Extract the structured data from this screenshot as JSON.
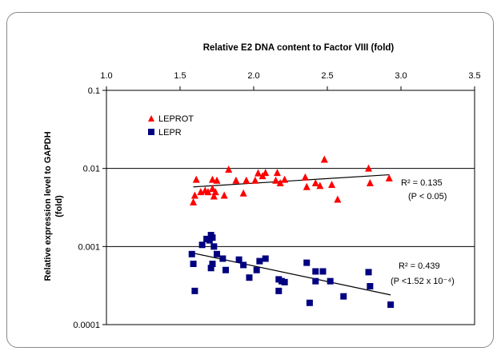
{
  "chart_data": {
    "type": "scatter",
    "title": "Relative E2 DNA content to Factor VIII (fold)",
    "xlabel": "",
    "ylabel": "Relative expression level to GAPDH (fold)",
    "ylabel_lines": [
      "Relative expression level to GAPDH",
      "(fold)"
    ],
    "x_axis_position": "top",
    "xlim": [
      1.0,
      3.5
    ],
    "x_ticks": [
      "1.0",
      "1.5",
      "2.0",
      "2.5",
      "3.0",
      "3.5"
    ],
    "y_scale": "log",
    "ylim": [
      0.0001,
      0.1
    ],
    "y_ticks": [
      "0.0001",
      "0.001",
      "0.01",
      "0.1"
    ],
    "grid": "horizontal",
    "legend_position": "top-left",
    "colors": {
      "LEPROT": "#ff0000",
      "LEPR": "#000080",
      "trend": "#000000",
      "grid": "#000000"
    },
    "series": [
      {
        "name": "LEPROT",
        "marker": "triangle",
        "color": "#ff0000",
        "points": [
          [
            1.59,
            0.0037
          ],
          [
            1.6,
            0.0045
          ],
          [
            1.61,
            0.0072
          ],
          [
            1.64,
            0.005
          ],
          [
            1.67,
            0.0052
          ],
          [
            1.69,
            0.005
          ],
          [
            1.72,
            0.0055
          ],
          [
            1.72,
            0.0072
          ],
          [
            1.73,
            0.0044
          ],
          [
            1.74,
            0.005
          ],
          [
            1.75,
            0.007
          ],
          [
            1.8,
            0.0045
          ],
          [
            1.83,
            0.0097
          ],
          [
            1.88,
            0.007
          ],
          [
            1.93,
            0.0048
          ],
          [
            1.95,
            0.007
          ],
          [
            2.01,
            0.007
          ],
          [
            2.03,
            0.0087
          ],
          [
            2.06,
            0.008
          ],
          [
            2.08,
            0.0088
          ],
          [
            2.15,
            0.007
          ],
          [
            2.16,
            0.0088
          ],
          [
            2.18,
            0.0065
          ],
          [
            2.21,
            0.0072
          ],
          [
            2.35,
            0.0077
          ],
          [
            2.36,
            0.0058
          ],
          [
            2.42,
            0.0065
          ],
          [
            2.45,
            0.006
          ],
          [
            2.48,
            0.013
          ],
          [
            2.53,
            0.0062
          ],
          [
            2.57,
            0.004
          ],
          [
            2.78,
            0.01
          ],
          [
            2.79,
            0.0065
          ],
          [
            2.92,
            0.0075
          ]
        ],
        "trendline": {
          "x": [
            1.59,
            2.92
          ],
          "y": [
            0.0058,
            0.0083
          ]
        },
        "annotation": {
          "r2": "R² = 0.135",
          "p": "(P < 0.05)"
        }
      },
      {
        "name": "LEPR",
        "marker": "square",
        "color": "#000080",
        "points": [
          [
            1.58,
            0.0008
          ],
          [
            1.59,
            0.0006
          ],
          [
            1.6,
            0.00027
          ],
          [
            1.65,
            0.00105
          ],
          [
            1.68,
            0.00125
          ],
          [
            1.7,
            0.0012
          ],
          [
            1.71,
            0.0014
          ],
          [
            1.72,
            0.0013
          ],
          [
            1.71,
            0.00053
          ],
          [
            1.72,
            0.0006
          ],
          [
            1.73,
            0.001
          ],
          [
            1.75,
            0.0008
          ],
          [
            1.79,
            0.0007
          ],
          [
            1.81,
            0.0005
          ],
          [
            1.9,
            0.00068
          ],
          [
            1.93,
            0.00058
          ],
          [
            1.97,
            0.0004
          ],
          [
            2.02,
            0.0005
          ],
          [
            2.04,
            0.00065
          ],
          [
            2.08,
            0.0007
          ],
          [
            2.17,
            0.00038
          ],
          [
            2.17,
            0.00027
          ],
          [
            2.19,
            0.00036
          ],
          [
            2.21,
            0.00035
          ],
          [
            2.36,
            0.00062
          ],
          [
            2.38,
            0.00019
          ],
          [
            2.42,
            0.00048
          ],
          [
            2.42,
            0.00036
          ],
          [
            2.47,
            0.00048
          ],
          [
            2.52,
            0.00036
          ],
          [
            2.61,
            0.00023
          ],
          [
            2.78,
            0.00047
          ],
          [
            2.79,
            0.00031
          ],
          [
            2.93,
            0.00018
          ]
        ],
        "trendline": {
          "x": [
            1.58,
            2.93
          ],
          "y": [
            0.00083,
            0.00024
          ]
        },
        "annotation": {
          "r2": "R² = 0.439",
          "p": "(P <1.52 x 10⁻⁴)"
        }
      }
    ]
  }
}
